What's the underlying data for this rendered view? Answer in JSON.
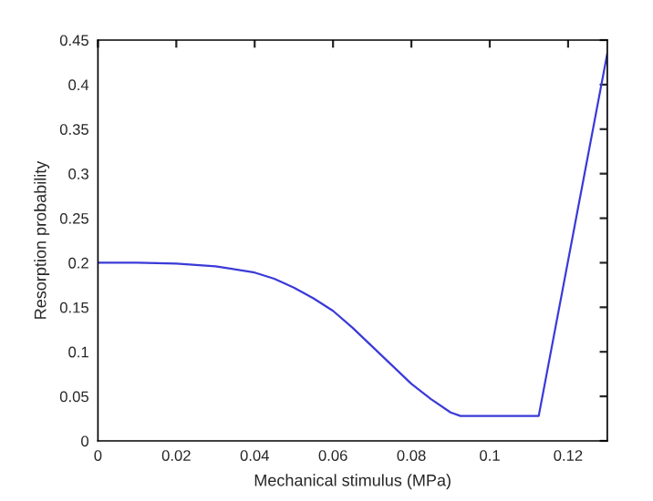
{
  "chart_data": {
    "type": "line",
    "xlabel": "Mechanical stimulus (MPa)",
    "ylabel": "Resorption probability",
    "series": [
      {
        "color": "#3a3ad8",
        "x": [
          0,
          0.01,
          0.02,
          0.03,
          0.04,
          0.045,
          0.05,
          0.055,
          0.06,
          0.065,
          0.07,
          0.075,
          0.08,
          0.085,
          0.09,
          0.0925,
          0.1125,
          0.13
        ],
        "values": [
          0.2,
          0.2,
          0.199,
          0.196,
          0.189,
          0.182,
          0.172,
          0.16,
          0.146,
          0.127,
          0.106,
          0.085,
          0.064,
          0.047,
          0.032,
          0.028,
          0.028,
          0.435
        ]
      }
    ],
    "xlim": [
      0,
      0.13
    ],
    "xticks": [
      0,
      0.02,
      0.04,
      0.06,
      0.08,
      0.1,
      0.12
    ],
    "ylim": [
      0,
      0.45
    ],
    "yticks": [
      0,
      0.05,
      0.1,
      0.15,
      0.2,
      0.25,
      0.3,
      0.35,
      0.4,
      0.45
    ],
    "grid": false,
    "legend": false,
    "marker": "none",
    "line_style": "solid"
  }
}
